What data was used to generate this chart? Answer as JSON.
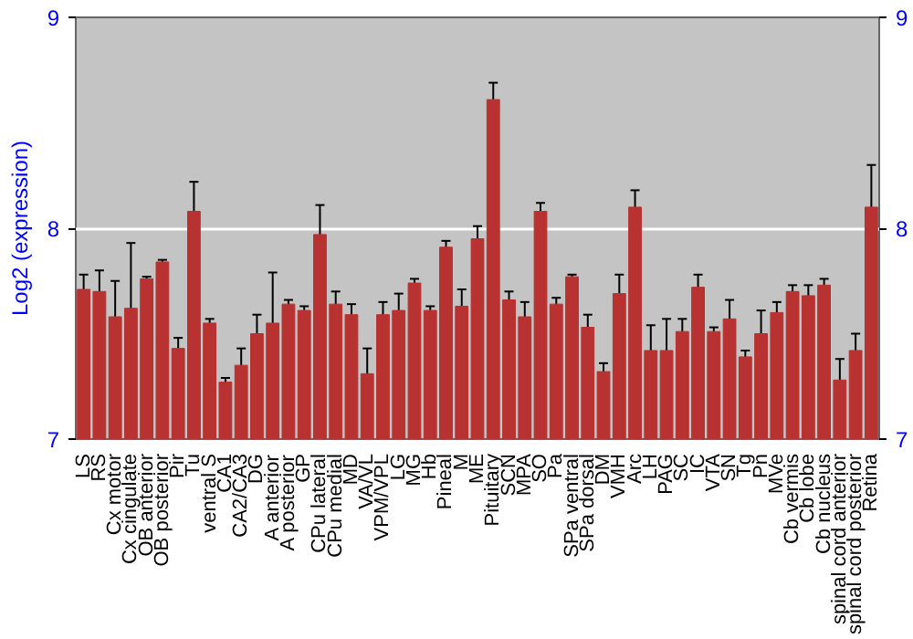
{
  "chart_data": {
    "type": "bar",
    "ylabel": "Log2 (expression)",
    "categories": [
      "LS",
      "RS",
      "Cx motor",
      "Cx cingulate",
      "OB anterior",
      "OB posterior",
      "Pir",
      "Tu",
      "ventral S",
      "CA1",
      "CA2/CA3",
      "DG",
      "A anterior",
      "A posterior",
      "GP",
      "CPu lateral",
      "CPu medial",
      "MD",
      "VA/VL",
      "VPM/VPL",
      "LG",
      "MG",
      "Hb",
      "Pineal",
      "M",
      "ME",
      "Pituitary",
      "SCN",
      "MPA",
      "SO",
      "Pa",
      "SPa ventral",
      "SPa dorsal",
      "DM",
      "VMH",
      "Arc",
      "LH",
      "PAG",
      "SC",
      "IC",
      "VTA",
      "SN",
      "Tg",
      "Pn",
      "MVe",
      "Cb vermis",
      "Cb lobe",
      "Cb nucleus",
      "spinal cord anterior",
      "spinal cord posterior",
      "Retina"
    ],
    "values": [
      7.71,
      7.7,
      7.58,
      7.62,
      7.76,
      7.84,
      7.43,
      8.08,
      7.55,
      7.27,
      7.35,
      7.5,
      7.55,
      7.64,
      7.61,
      7.97,
      7.64,
      7.59,
      7.31,
      7.59,
      7.61,
      7.74,
      7.61,
      7.91,
      7.63,
      7.95,
      8.61,
      7.66,
      7.58,
      8.08,
      7.64,
      7.77,
      7.53,
      7.32,
      7.69,
      8.1,
      7.42,
      7.42,
      7.51,
      7.72,
      7.51,
      7.57,
      7.39,
      7.5,
      7.6,
      7.7,
      7.68,
      7.73,
      7.28,
      7.42,
      8.1
    ],
    "errors": [
      0.07,
      0.1,
      0.17,
      0.31,
      0.01,
      0.01,
      0.05,
      0.14,
      0.02,
      0.02,
      0.08,
      0.09,
      0.24,
      0.02,
      0.02,
      0.14,
      0.06,
      0.05,
      0.12,
      0.06,
      0.08,
      0.02,
      0.02,
      0.03,
      0.08,
      0.06,
      0.08,
      0.04,
      0.07,
      0.04,
      0.03,
      0.01,
      0.06,
      0.04,
      0.09,
      0.08,
      0.12,
      0.15,
      0.06,
      0.06,
      0.02,
      0.09,
      0.03,
      0.11,
      0.05,
      0.03,
      0.05,
      0.03,
      0.1,
      0.08,
      0.2
    ],
    "color": "#b83232",
    "ylim": [
      7,
      9
    ],
    "yticks": [
      7,
      8,
      9
    ],
    "y2lim": [
      7,
      9
    ],
    "y2ticks": [
      7,
      8,
      9
    ],
    "grid": "y"
  }
}
